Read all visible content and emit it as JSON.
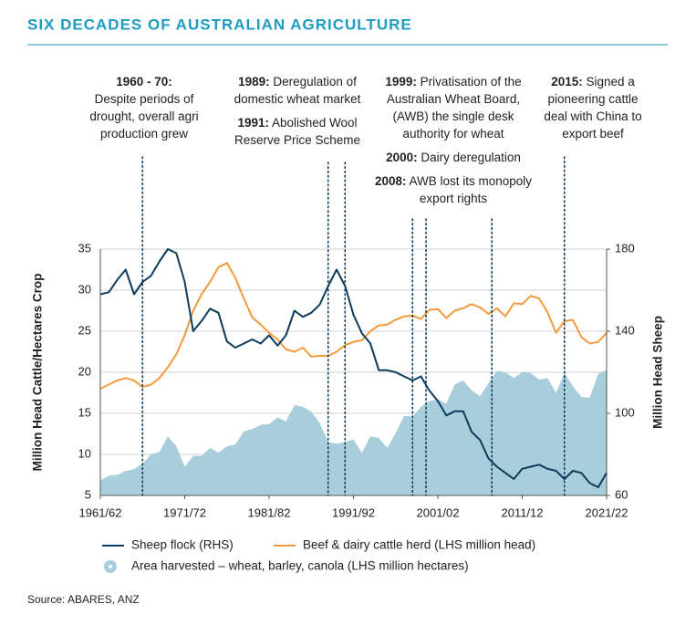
{
  "chart_data": {
    "type": "line",
    "title": "SIX DECADES OF AUSTRALIAN AGRICULTURE",
    "ylabel": "Million Head Cattle/Hectares Crop",
    "y2label": "Million Head Sheep",
    "source": "Source: ABARES, ANZ",
    "x": [
      1961,
      1962,
      1963,
      1964,
      1965,
      1966,
      1967,
      1968,
      1969,
      1970,
      1971,
      1972,
      1973,
      1974,
      1975,
      1976,
      1977,
      1978,
      1979,
      1980,
      1981,
      1982,
      1983,
      1984,
      1985,
      1986,
      1987,
      1988,
      1989,
      1990,
      1991,
      1992,
      1993,
      1994,
      1995,
      1996,
      1997,
      1998,
      1999,
      2000,
      2001,
      2002,
      2003,
      2004,
      2005,
      2006,
      2007,
      2008,
      2009,
      2010,
      2011,
      2012,
      2013,
      2014,
      2015,
      2016,
      2017,
      2018,
      2019,
      2020,
      2021
    ],
    "xlim": [
      1961,
      2021
    ],
    "xticks": [
      {
        "value": 1961,
        "label": "1961/62"
      },
      {
        "value": 1971,
        "label": "1971/72"
      },
      {
        "value": 1981,
        "label": "1981/82"
      },
      {
        "value": 1991,
        "label": "1991/92"
      },
      {
        "value": 2001,
        "label": "2001/02"
      },
      {
        "value": 2011,
        "label": "2011/12"
      },
      {
        "value": 2021,
        "label": "2021/22"
      }
    ],
    "ylim": [
      5,
      35
    ],
    "yticks": [
      5,
      10,
      15,
      20,
      25,
      30,
      35
    ],
    "y2lim": [
      60,
      180
    ],
    "y2ticks": [
      60,
      100,
      140,
      180
    ],
    "grid": true,
    "series": [
      {
        "name": "Area harvested – wheat, barley, canola (LHS million hectares)",
        "style": "area",
        "color": "#a9cedb",
        "values": [
          6.8,
          7.4,
          7.5,
          8,
          8.2,
          8.9,
          10,
          10.3,
          12.2,
          11,
          8.5,
          9.8,
          9.8,
          10.8,
          10.2,
          11,
          11.2,
          12.8,
          13.1,
          13.6,
          13.7,
          14.5,
          14,
          16,
          15.8,
          15.2,
          13.8,
          11.5,
          11.3,
          11.5,
          11.8,
          10.2,
          12.2,
          12,
          10.8,
          12.6,
          14.7,
          14.6,
          15.8,
          16.5,
          16.7,
          16.2,
          18.5,
          19,
          17.8,
          17.1,
          18.7,
          20.2,
          20,
          19.3,
          20,
          19.9,
          19.1,
          19.3,
          17.5,
          19.9,
          18.3,
          17,
          16.9,
          19.8,
          20.3
        ]
      },
      {
        "name": "Beef & dairy cattle herd (LHS million head)",
        "style": "line",
        "color": "#f39a3d",
        "values": [
          18,
          18.5,
          19,
          19.3,
          19,
          18.2,
          18.5,
          19.3,
          20.6,
          22.2,
          24.5,
          27.5,
          29.5,
          31,
          32.8,
          33.3,
          31.5,
          29,
          26.7,
          25.8,
          24.8,
          24,
          22.8,
          22.5,
          23,
          21.9,
          22,
          22,
          22.5,
          23.3,
          23.7,
          23.9,
          25,
          25.7,
          25.8,
          26.4,
          26.8,
          26.9,
          26.5,
          27.6,
          27.7,
          26.6,
          27.5,
          27.8,
          28.3,
          27.9,
          27.1,
          27.8,
          26.8,
          28.4,
          28.3,
          29.3,
          29,
          27.3,
          24.8,
          26.2,
          26.4,
          24.3,
          23.5,
          23.7,
          24.8
        ]
      },
      {
        "name": "Sheep flock (RHS)",
        "style": "line",
        "axis": "y2",
        "color": "#0d3b5c",
        "values": [
          158,
          159,
          165,
          170,
          158,
          164,
          167,
          174,
          180,
          178,
          164,
          140,
          145,
          151,
          149,
          135,
          132,
          134,
          136,
          134,
          138,
          133,
          138,
          150,
          147,
          149,
          153,
          162,
          170,
          162,
          148,
          139,
          134,
          121,
          121,
          120,
          118,
          116,
          118,
          111,
          106,
          99,
          101,
          101,
          91,
          87,
          78,
          74,
          71,
          68,
          73,
          74,
          75,
          73,
          72,
          68,
          72,
          71,
          66,
          64,
          71
        ]
      }
    ],
    "markers": [
      1966,
      1988,
      1990,
      1998,
      1999.6,
      2007.4,
      2016
    ],
    "annotations": [
      {
        "events": [
          {
            "label": "1960 - 70:",
            "text": "Despite periods of drought, overall agri production grew"
          }
        ]
      },
      {
        "events": [
          {
            "label": "1989:",
            "text": "Deregulation of domestic wheat market"
          },
          {
            "label": "1991:",
            "text": "Abolished Wool Reserve Price Scheme"
          }
        ]
      },
      {
        "events": [
          {
            "label": "1999:",
            "text": "Privatisation of the Australian Wheat Board, (AWB) the single desk authority for wheat"
          },
          {
            "label": "2000:",
            "text": "Dairy deregulation"
          },
          {
            "label": "2008:",
            "text": "AWB lost its monopoly export rights"
          }
        ]
      },
      {
        "events": [
          {
            "label": "2015:",
            "text": "Signed a pioneering cattle deal with China to export beef"
          }
        ]
      }
    ]
  }
}
